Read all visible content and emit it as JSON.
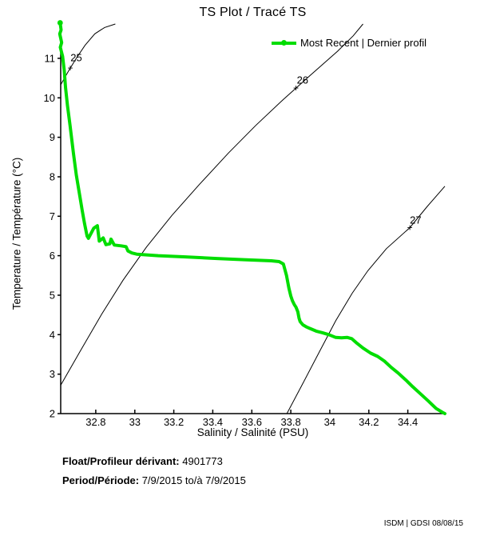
{
  "title": "TS Plot / Tracé TS",
  "legend": {
    "label": "Most Recent | Dernier profil",
    "color": "#00dd00"
  },
  "annotations": {
    "float_label": "Float/Profileur dérivant:",
    "float_value": "4901773",
    "period_label": "Period/Période:",
    "period_value": "7/9/2015 to/à 7/9/2015"
  },
  "footer": {
    "credit": "ISDM | GDSI 08/08/15"
  },
  "chart_data": {
    "type": "line",
    "title": "TS Plot / Tracé TS",
    "xlabel": "Salinity / Salinité (PSU)",
    "ylabel": "Temperature / Température (°C)",
    "xlim": [
      32.62,
      34.59
    ],
    "ylim": [
      2,
      11.87
    ],
    "grid": false,
    "legend_position": "top-right",
    "x_ticks": [
      32.8,
      33,
      33.2,
      33.4,
      33.6,
      33.8,
      34,
      34.2,
      34.4
    ],
    "x_tick_labels": [
      "32.8",
      "33",
      "33.2",
      "33.4",
      "33.6",
      "33.8",
      "34",
      "34.2",
      "34.4"
    ],
    "y_ticks": [
      2,
      3,
      4,
      5,
      6,
      7,
      8,
      9,
      10,
      11
    ],
    "y_tick_labels": [
      "2",
      "3",
      "4",
      "5",
      "6",
      "7",
      "8",
      "9",
      "10",
      "11"
    ],
    "profile": {
      "name": "Most Recent | Dernier profil",
      "color": "#00dd00",
      "points": [
        [
          32.617,
          11.9
        ],
        [
          32.622,
          11.72
        ],
        [
          32.615,
          11.62
        ],
        [
          32.625,
          11.4
        ],
        [
          32.618,
          11.28
        ],
        [
          32.63,
          11.05
        ],
        [
          32.638,
          10.7
        ],
        [
          32.645,
          10.25
        ],
        [
          32.655,
          9.8
        ],
        [
          32.668,
          9.3
        ],
        [
          32.685,
          8.6
        ],
        [
          32.7,
          8.05
        ],
        [
          32.715,
          7.6
        ],
        [
          32.73,
          7.15
        ],
        [
          32.742,
          6.82
        ],
        [
          32.755,
          6.5
        ],
        [
          32.762,
          6.44
        ],
        [
          32.79,
          6.7
        ],
        [
          32.808,
          6.76
        ],
        [
          32.818,
          6.37
        ],
        [
          32.838,
          6.45
        ],
        [
          32.852,
          6.28
        ],
        [
          32.872,
          6.3
        ],
        [
          32.878,
          6.42
        ],
        [
          32.895,
          6.27
        ],
        [
          32.93,
          6.25
        ],
        [
          32.955,
          6.23
        ],
        [
          32.965,
          6.12
        ],
        [
          32.985,
          6.07
        ],
        [
          33.01,
          6.04
        ],
        [
          33.12,
          6.0
        ],
        [
          33.26,
          5.97
        ],
        [
          33.42,
          5.93
        ],
        [
          33.56,
          5.9
        ],
        [
          33.7,
          5.87
        ],
        [
          33.74,
          5.85
        ],
        [
          33.762,
          5.79
        ],
        [
          33.778,
          5.5
        ],
        [
          33.79,
          5.18
        ],
        [
          33.8,
          4.98
        ],
        [
          33.808,
          4.86
        ],
        [
          33.818,
          4.76
        ],
        [
          33.826,
          4.7
        ],
        [
          33.836,
          4.58
        ],
        [
          33.842,
          4.42
        ],
        [
          33.848,
          4.33
        ],
        [
          33.862,
          4.25
        ],
        [
          33.878,
          4.2
        ],
        [
          33.896,
          4.16
        ],
        [
          33.93,
          4.09
        ],
        [
          33.962,
          4.05
        ],
        [
          33.995,
          4.0
        ],
        [
          34.03,
          3.93
        ],
        [
          34.06,
          3.92
        ],
        [
          34.09,
          3.93
        ],
        [
          34.112,
          3.9
        ],
        [
          34.14,
          3.78
        ],
        [
          34.17,
          3.66
        ],
        [
          34.21,
          3.53
        ],
        [
          34.245,
          3.45
        ],
        [
          34.28,
          3.33
        ],
        [
          34.315,
          3.17
        ],
        [
          34.35,
          3.03
        ],
        [
          34.39,
          2.85
        ],
        [
          34.425,
          2.68
        ],
        [
          34.465,
          2.5
        ],
        [
          34.505,
          2.32
        ],
        [
          34.545,
          2.13
        ],
        [
          34.578,
          2.03
        ],
        [
          34.59,
          2.0
        ]
      ]
    },
    "isopycnals": [
      {
        "label": "25",
        "plus": [
          32.669,
          10.76
        ],
        "text": [
          32.7,
          11.02
        ],
        "points": [
          [
            32.62,
            10.33
          ],
          [
            32.66,
            10.68
          ],
          [
            32.7,
            11.0
          ],
          [
            32.745,
            11.33
          ],
          [
            32.795,
            11.62
          ],
          [
            32.845,
            11.78
          ],
          [
            32.9,
            11.87
          ]
        ]
      },
      {
        "label": "26",
        "plus": [
          33.826,
          10.25
        ],
        "text": [
          33.86,
          10.45
        ],
        "points": [
          [
            32.62,
            2.72
          ],
          [
            32.72,
            3.58
          ],
          [
            32.83,
            4.52
          ],
          [
            32.94,
            5.38
          ],
          [
            33.06,
            6.22
          ],
          [
            33.19,
            7.02
          ],
          [
            33.33,
            7.8
          ],
          [
            33.48,
            8.6
          ],
          [
            33.62,
            9.3
          ],
          [
            33.76,
            9.95
          ],
          [
            33.9,
            10.57
          ],
          [
            34.04,
            11.18
          ],
          [
            34.12,
            11.57
          ],
          [
            34.17,
            11.87
          ]
        ]
      },
      {
        "label": "27",
        "plus": [
          34.41,
          6.71
        ],
        "text": [
          34.44,
          6.9
        ],
        "points": [
          [
            33.78,
            2.0
          ],
          [
            33.86,
            2.75
          ],
          [
            33.945,
            3.55
          ],
          [
            34.03,
            4.35
          ],
          [
            34.115,
            5.05
          ],
          [
            34.195,
            5.62
          ],
          [
            34.29,
            6.18
          ],
          [
            34.41,
            6.71
          ],
          [
            34.5,
            7.25
          ],
          [
            34.59,
            7.76
          ]
        ]
      }
    ]
  }
}
